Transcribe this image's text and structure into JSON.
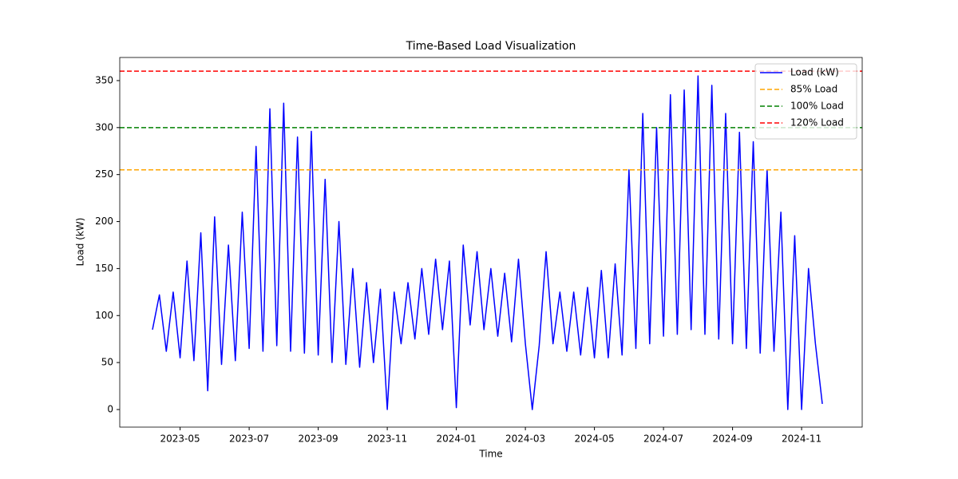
{
  "chart_data": {
    "type": "line",
    "title": "Time-Based Load Visualization",
    "x_label": "Time",
    "y_label": "Load (kW)",
    "categories": [
      null,
      null,
      null,
      null,
      "2023-05",
      null,
      null,
      null,
      null,
      null,
      null,
      null,
      null,
      null,
      "2023-07",
      null,
      null,
      null,
      null,
      null,
      null,
      null,
      null,
      null,
      "2023-09",
      null,
      null,
      null,
      null,
      null,
      null,
      null,
      null,
      null,
      "2023-11",
      null,
      null,
      null,
      null,
      null,
      null,
      null,
      null,
      null,
      "2024-01",
      null,
      null,
      null,
      null,
      null,
      null,
      null,
      null,
      null,
      "2024-03",
      null,
      null,
      null,
      null,
      null,
      null,
      null,
      null,
      null,
      "2024-05",
      null,
      null,
      null,
      null,
      null,
      null,
      null,
      null,
      null,
      "2024-07",
      null,
      null,
      null,
      null,
      null,
      null,
      null,
      null,
      null,
      "2024-09",
      null,
      null,
      null,
      null,
      null,
      null,
      null,
      null,
      null,
      "2024-11",
      null,
      null,
      null
    ],
    "series": [
      {
        "name": "Load (kW)",
        "color": "#0000ff",
        "values": [
          85,
          122,
          62,
          125,
          55,
          158,
          52,
          188,
          20,
          205,
          48,
          175,
          52,
          210,
          65,
          280,
          62,
          320,
          68,
          326,
          62,
          290,
          60,
          296,
          58,
          245,
          50,
          200,
          48,
          150,
          45,
          135,
          50,
          128,
          0,
          125,
          70,
          135,
          75,
          150,
          80,
          160,
          85,
          158,
          2,
          175,
          90,
          168,
          85,
          150,
          78,
          145,
          72,
          160,
          70,
          0,
          68,
          168,
          70,
          125,
          62,
          125,
          58,
          130,
          55,
          148,
          55,
          155,
          58,
          255,
          65,
          315,
          70,
          300,
          78,
          335,
          80,
          340,
          85,
          355,
          80,
          345,
          75,
          315,
          70,
          295,
          65,
          285,
          60,
          255,
          62,
          210,
          0,
          185,
          0,
          150,
          70,
          6
        ]
      }
    ],
    "hlines": [
      {
        "name": "85% Load",
        "value": 255,
        "color": "#ffa500"
      },
      {
        "name": "100% Load",
        "value": 300,
        "color": "#008000"
      },
      {
        "name": "120% Load",
        "value": 360,
        "color": "#ff0000"
      }
    ],
    "ylim": [
      -18.7,
      374.6
    ],
    "yticks": [
      0,
      50,
      100,
      150,
      200,
      250,
      300,
      350
    ],
    "grid": false,
    "legend": "upper right"
  }
}
